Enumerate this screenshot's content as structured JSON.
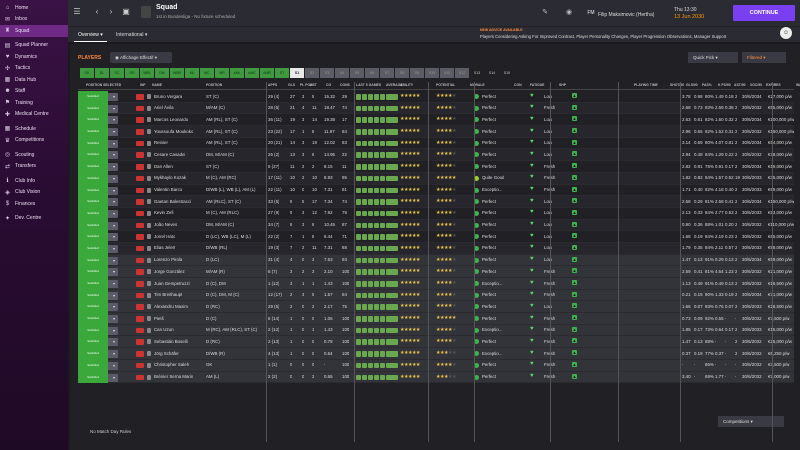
{
  "sidebar": {
    "items": [
      {
        "label": "Home",
        "icon": "home-icon"
      },
      {
        "label": "Inbox",
        "icon": "inbox-icon"
      },
      {
        "label": "Squad",
        "icon": "shirt-icon",
        "active": true
      },
      {
        "label": "Squad Planner",
        "icon": "planner-icon"
      },
      {
        "label": "Dynamics",
        "icon": "dynamics-icon"
      },
      {
        "label": "Tactics",
        "icon": "tactics-icon"
      },
      {
        "label": "Data Hub",
        "icon": "data-icon"
      },
      {
        "label": "Staff",
        "icon": "staff-icon"
      },
      {
        "label": "Training",
        "icon": "training-icon"
      },
      {
        "label": "Medical Centre",
        "icon": "medical-icon"
      },
      {
        "label": "Schedule",
        "icon": "calendar-icon"
      },
      {
        "label": "Competitions",
        "icon": "trophy-icon"
      },
      {
        "label": "Scouting",
        "icon": "scouting-icon"
      },
      {
        "label": "Transfers",
        "icon": "transfer-icon"
      },
      {
        "label": "Club Info",
        "icon": "info-icon"
      },
      {
        "label": "Club Vision",
        "icon": "vision-icon"
      },
      {
        "label": "Finances",
        "icon": "finance-icon"
      },
      {
        "label": "Dev. Centre",
        "icon": "dev-icon"
      }
    ]
  },
  "header": {
    "title": "Squad",
    "subtitle": "1st in Bundesliga - No fixture scheduled",
    "team": "Filip Maksimovic (Hertha)",
    "time": "Thu 13:30",
    "date": "13 Jun 2030",
    "continue_label": "CONTINUE"
  },
  "tabs": [
    {
      "label": "Overview"
    },
    {
      "label": "International"
    }
  ],
  "advice": {
    "title": "NEW ADVICE AVAILABLE",
    "text": "Players Considering Asking For Improved Contract, Player Personality Changes, Player Progression Observations, Manager Support"
  },
  "toolbar": {
    "players_label": "PLAYERS",
    "filter_label": "Affichage Effectif",
    "quickpick_label": "Quick Pick",
    "filtered_label": "Filtered"
  },
  "pos_buttons": [
    {
      "label": "GK",
      "style": "on"
    },
    {
      "label": "DL",
      "style": "on"
    },
    {
      "label": "DC",
      "style": "on"
    },
    {
      "label": "DR",
      "style": "on"
    },
    {
      "label": "WBL",
      "style": "on"
    },
    {
      "label": "DM",
      "style": "on"
    },
    {
      "label": "WBR",
      "style": "on"
    },
    {
      "label": "ML",
      "style": "on"
    },
    {
      "label": "MC",
      "style": "on"
    },
    {
      "label": "MR",
      "style": "on"
    },
    {
      "label": "AML",
      "style": "on"
    },
    {
      "label": "AMC",
      "style": "on"
    },
    {
      "label": "AMR",
      "style": "on"
    },
    {
      "label": "ST",
      "style": "on"
    },
    {
      "label": "S1",
      "style": "sel"
    },
    {
      "label": "S2",
      "style": "dim"
    },
    {
      "label": "S3",
      "style": "dim"
    },
    {
      "label": "S4",
      "style": "dim"
    },
    {
      "label": "S5",
      "style": "dim"
    },
    {
      "label": "S6",
      "style": "dim"
    },
    {
      "label": "S7",
      "style": "dim"
    },
    {
      "label": "S8",
      "style": "dim"
    },
    {
      "label": "S9",
      "style": "dim"
    },
    {
      "label": "S10",
      "style": "dim"
    },
    {
      "label": "S11",
      "style": "dim"
    },
    {
      "label": "S12",
      "style": "dim"
    },
    {
      "label": "S13",
      "style": "plain"
    },
    {
      "label": "S14",
      "style": "plain"
    },
    {
      "label": "S15",
      "style": "plain"
    }
  ],
  "columns": [
    "POSITION SELECTED",
    "INF",
    "NAME",
    "POSITION",
    "APPS",
    "GLS",
    "PL PON",
    "AST",
    "CG",
    "CONS",
    "LAST 5 GAMES",
    "AVERAGE",
    "ABILITY",
    "POTENTIAL",
    "MORALE",
    "CON",
    "FATIGUE",
    "SHP",
    "PLAYING TIME",
    "SHOT/90",
    "GLS/90",
    "PAS%",
    "K PS/90",
    "AST/90",
    "XGC/90",
    "EXPIRES",
    "WAGE",
    "TR"
  ],
  "players": [
    {
      "pos_sel": "",
      "name": "Bruno Vergara",
      "position": "ST (C)",
      "apps": "29 (4)",
      "gls": "27",
      "pon": "3",
      "ast": "5",
      "cg": "15.32",
      "cons": "29",
      "pot_stars": 4,
      "pot_half": false,
      "morale": "Perfect",
      "fatigue": "Low",
      "shot": "3.78",
      "gls90": "0.98",
      "pas": "80%",
      "kps": "1.49",
      "ast90": "0.18",
      "xg": "2",
      "expires": "30/6/2034",
      "wage": "€27,000 p/w"
    },
    {
      "pos_sel": "",
      "name": "Ariel Ávila",
      "position": "M/AM (C)",
      "apps": "28 (5)",
      "gls": "21",
      "pon": "4",
      "ast": "11",
      "cg": "18.47",
      "cons": "74",
      "pot_stars": 4,
      "pot_half": false,
      "morale": "Perfect",
      "fatigue": "Fresh",
      "shot": "2.68",
      "gls90": "0.73",
      "pas": "83%",
      "kps": "2.59",
      "ast90": "0.38",
      "xg": "2",
      "expires": "30/6/2032",
      "wage": "€55,000 p/w"
    },
    {
      "pos_sel": "AML",
      "name": "Marcos Leonardo",
      "position": "AM (RL), ST (C)",
      "apps": "36 (11)",
      "gls": "19",
      "pon": "3",
      "ast": "14",
      "cg": "19.38",
      "cons": "17",
      "pot_stars": 4,
      "pot_half": false,
      "morale": "Perfect",
      "fatigue": "Low",
      "shot": "2.63",
      "gls90": "0.61",
      "pas": "82%",
      "kps": "1.60",
      "ast90": "0.32",
      "xg": "2",
      "expires": "30/6/2034",
      "wage": "€100,000 p/w"
    },
    {
      "pos_sel": "AMR",
      "name": "Youssoufa Moukoko",
      "position": "AM (RL), ST (C)",
      "apps": "23 (22)",
      "gls": "17",
      "pon": "1",
      "ast": "8",
      "cg": "11.97",
      "cons": "84",
      "pot_stars": 4,
      "pot_half": false,
      "morale": "Perfect",
      "fatigue": "Low",
      "shot": "2.96",
      "gls90": "0.65",
      "pas": "82%",
      "kps": "1.52",
      "ast90": "0.31",
      "xg": "2",
      "expires": "30/6/2032",
      "wage": "€150,000 p/w"
    },
    {
      "pos_sel": "AMR",
      "name": "Reinier",
      "position": "AM (RL), ST (C)",
      "apps": "20 (21)",
      "gls": "14",
      "pon": "3",
      "ast": "19",
      "cg": "12.02",
      "cons": "83",
      "pot_stars": 4,
      "pot_half": false,
      "morale": "Perfect",
      "fatigue": "Low",
      "shot": "3.14",
      "gls90": "0.59",
      "pas": "80%",
      "kps": "4.07",
      "ast90": "0.81",
      "xg": "2",
      "expires": "30/6/2034",
      "wage": "€54,000 p/w"
    },
    {
      "pos_sel": "DMCR",
      "name": "Cesare Casadei",
      "position": "DM, M/AM (C)",
      "apps": "26 (2)",
      "gls": "13",
      "pon": "3",
      "ast": "6",
      "cg": "14.95",
      "cons": "22",
      "pot_stars": 4,
      "pot_half": false,
      "morale": "Perfect",
      "fatigue": "Low",
      "shot": "2.94",
      "gls90": "0.48",
      "pas": "84%",
      "kps": "1.29",
      "ast90": "0.22",
      "xg": "2",
      "expires": "30/6/2032",
      "wage": "€78,000 p/w"
    },
    {
      "pos_sel": "SUB",
      "name": "Dan Allen",
      "position": "ST (C)",
      "apps": "5 (27)",
      "gls": "11",
      "pon": "2",
      "ast": "2",
      "cg": "8.15",
      "cons": "11",
      "pot_stars": 4,
      "pot_half": false,
      "morale": "Perfect",
      "fatigue": "Fresh",
      "shot": "2.82",
      "gls90": "0.91",
      "pas": "75%",
      "kps": "0.91",
      "ast90": "0.17",
      "xg": "2",
      "expires": "30/6/2034",
      "wage": "€19,000 p/w"
    },
    {
      "pos_sel": "",
      "name": "Mykhaylo Kozak",
      "position": "M (C), AM (RC)",
      "apps": "17 (11)",
      "gls": "10",
      "pon": "2",
      "ast": "10",
      "cg": "8.93",
      "cons": "95",
      "pot_stars": 5,
      "pot_half": false,
      "morale": "Quite Good",
      "fatigue": "Fresh",
      "shot": "1.82",
      "gls90": "0.82",
      "pas": "84%",
      "kps": "1.57",
      "ast90": "0.52",
      "xg": "19",
      "expires": "30/6/2033",
      "wage": "€35,000 p/w"
    },
    {
      "pos_sel": "DRC",
      "name": "Valentin Barco",
      "position": "D/WB (L), WB (L), AM (L)",
      "apps": "22 (11)",
      "gls": "10",
      "pon": "0",
      "ast": "10",
      "cg": "7.31",
      "cons": "81",
      "pot_stars": 4,
      "pot_half": false,
      "morale": "Exceptio...",
      "fatigue": "Fresh",
      "shot": "1.71",
      "gls90": "0.40",
      "pas": "82%",
      "kps": "4.18",
      "ast90": "0.40",
      "xg": "2",
      "expires": "30/6/2033",
      "wage": "€69,000 p/w"
    },
    {
      "pos_sel": "AMR",
      "name": "Gaetan Balestracci",
      "position": "AM (RLC), ST (C)",
      "apps": "33 (5)",
      "gls": "9",
      "pon": "5",
      "ast": "17",
      "cg": "7.34",
      "cons": "74",
      "pot_stars": 4,
      "pot_half": false,
      "morale": "Perfect",
      "fatigue": "Low",
      "shot": "2.58",
      "gls90": "0.29",
      "pas": "81%",
      "kps": "2.58",
      "ast90": "0.41",
      "xg": "2",
      "expires": "30/6/2034",
      "wage": "€150,000 p/w"
    },
    {
      "pos_sel": "DMCL",
      "name": "Kevin Zefi",
      "position": "M (C), AM (RLC)",
      "apps": "27 (9)",
      "gls": "9",
      "pon": "3",
      "ast": "12",
      "cg": "7.92",
      "cons": "79",
      "pot_stars": 4,
      "pot_half": false,
      "morale": "Perfect",
      "fatigue": "Low",
      "shot": "2.13",
      "gls90": "0.33",
      "pas": "84%",
      "kps": "2.77",
      "ast90": "0.53",
      "xg": "2",
      "expires": "30/6/2033",
      "wage": "€53,000 p/w"
    },
    {
      "pos_sel": "DL",
      "name": "João Neves",
      "position": "DM, M/AM (C)",
      "apps": "34 (7)",
      "gls": "8",
      "pon": "3",
      "ast": "8",
      "cg": "10.45",
      "cons": "87",
      "pot_stars": 4,
      "pot_half": false,
      "morale": "Perfect",
      "fatigue": "Low",
      "shot": "0.90",
      "gls90": "0.36",
      "pas": "88%",
      "kps": "1.01",
      "ast90": "0.20",
      "xg": "2",
      "expires": "30/6/2032",
      "wage": "€110,000 p/w"
    },
    {
      "pos_sel": "DR",
      "name": "Jorrel Hato",
      "position": "D (LC), WB (LC), M (L)",
      "apps": "22 (2)",
      "gls": "7",
      "pon": "1",
      "ast": "8",
      "cg": "6.44",
      "cons": "71",
      "pot_stars": 4,
      "pot_half": false,
      "morale": "Perfect",
      "fatigue": "Low",
      "shot": "1.68",
      "gls90": "0.19",
      "pas": "84%",
      "kps": "2.19",
      "ast90": "0.23",
      "xg": "2",
      "expires": "30/6/2032",
      "wage": "€65,000 p/w"
    },
    {
      "pos_sel": "DCL",
      "name": "Elias Jelert",
      "position": "D/WB (RL)",
      "apps": "19 (3)",
      "gls": "7",
      "pon": "2",
      "ast": "11",
      "cg": "7.31",
      "cons": "88",
      "pot_stars": 4,
      "pot_half": false,
      "morale": "Perfect",
      "fatigue": "Low",
      "shot": "1.79",
      "gls90": "0.35",
      "pas": "84%",
      "kps": "2.11",
      "ast90": "0.57",
      "xg": "2",
      "expires": "30/6/2033",
      "wage": "€98,000 p/w"
    },
    {
      "pos_sel": "",
      "name": "Lorenzo Pirola",
      "position": "D (LC)",
      "apps": "31 (4)",
      "gls": "4",
      "pon": "0",
      "ast": "3",
      "cg": "7.53",
      "cons": "93",
      "pot_stars": 4,
      "pot_half": false,
      "morale": "Perfect",
      "fatigue": "Low",
      "shot": "1.47",
      "gls90": "0.13",
      "pas": "91%",
      "kps": "0.29",
      "ast90": "0.13",
      "xg": "2",
      "expires": "30/6/2034",
      "wage": "€59,000 p/w"
    },
    {
      "pos_sel": "",
      "name": "Jorge González",
      "position": "M/AM (R)",
      "apps": "6 (7)",
      "gls": "3",
      "pon": "2",
      "ast": "3",
      "cg": "2.10",
      "cons": "100",
      "pot_stars": 4,
      "pot_half": false,
      "morale": "Perfect",
      "fatigue": "Fresh",
      "shot": "2.59",
      "gls90": "0.41",
      "pas": "81%",
      "kps": "4.64",
      "ast90": "1.23",
      "xg": "2",
      "expires": "30/6/2032",
      "wage": "€21,000 p/w"
    },
    {
      "pos_sel": "",
      "name": "Juan Gempetruzzi",
      "position": "D (C), DM",
      "apps": "1 (12)",
      "gls": "3",
      "pon": "1",
      "ast": "1",
      "cg": "1.43",
      "cons": "100",
      "pot_stars": 4,
      "pot_half": false,
      "morale": "Exceptio...",
      "fatigue": "Fresh",
      "shot": "1.13",
      "gls90": "0.49",
      "pas": "91%",
      "kps": "0.49",
      "ast90": "0.13",
      "xg": "2",
      "expires": "30/6/2032",
      "wage": "€16,500 p/w"
    },
    {
      "pos_sel": "",
      "name": "Tim Breithaupt",
      "position": "D (C), DM, M (C)",
      "apps": "12 (17)",
      "gls": "2",
      "pon": "3",
      "ast": "5",
      "cg": "1.57",
      "cons": "84",
      "pot_stars": 4,
      "pot_half": false,
      "morale": "Perfect",
      "fatigue": "Fresh",
      "shot": "0.21",
      "gls90": "0.15",
      "pas": "90%",
      "kps": "1.33",
      "ast90": "0.19",
      "xg": "2",
      "expires": "30/6/2034",
      "wage": "€71,000 p/w"
    },
    {
      "pos_sel": "",
      "name": "Alexandru Maxim",
      "position": "D (RC)",
      "apps": "29 (5)",
      "gls": "2",
      "pon": "0",
      "ast": "2",
      "cg": "2.17",
      "cons": "75",
      "pot_stars": 4,
      "pot_half": false,
      "morale": "Perfect",
      "fatigue": "Low",
      "shot": "1.66",
      "gls90": "0.07",
      "pas": "93%",
      "kps": "0.76",
      "ast90": "0.07",
      "xg": "2",
      "expires": "30/6/2033",
      "wage": "€28,500 p/w"
    },
    {
      "pos_sel": "",
      "name": "Pietš",
      "position": "D (C)",
      "apps": "6 (14)",
      "gls": "1",
      "pon": "0",
      "ast": "0",
      "cg": "1.06",
      "cons": "100",
      "pot_stars": 5,
      "pot_half": false,
      "morale": "Perfect",
      "fatigue": "Fresh",
      "shot": "0.73",
      "gls90": "0.09",
      "pas": "92%",
      "kps": "0.55",
      "ast90": "-",
      "xg": "-",
      "expires": "30/6/2032",
      "wage": "€7,500 p/w"
    },
    {
      "pos_sel": "",
      "name": "Can Uzun",
      "position": "M (RC), AM (RLC), ST (C)",
      "apps": "2 (12)",
      "gls": "1",
      "pon": "0",
      "ast": "1",
      "cg": "1.43",
      "cons": "100",
      "pot_stars": 4,
      "pot_half": true,
      "morale": "Exceptio...",
      "fatigue": "Fresh",
      "shot": "1.85",
      "gls90": "0.17",
      "pas": "73%",
      "kps": "0.64",
      "ast90": "0.17",
      "xg": "2",
      "expires": "30/6/2033",
      "wage": "€15,000 p/w"
    },
    {
      "pos_sel": "",
      "name": "Sebastián Boselli",
      "position": "D (RC)",
      "apps": "2 (13)",
      "gls": "1",
      "pon": "0",
      "ast": "0",
      "cg": "0.78",
      "cons": "100",
      "pot_stars": 4,
      "pot_half": false,
      "morale": "Perfect",
      "fatigue": "Fresh",
      "shot": "1.47",
      "gls90": "0.13",
      "pas": "88%",
      "kps": "-",
      "ast90": "-",
      "xg": "2",
      "expires": "30/6/2032",
      "wage": "€25,000 p/w"
    },
    {
      "pos_sel": "",
      "name": "Jörg Schäfer",
      "position": "D/WB (R)",
      "apps": "4 (13)",
      "gls": "1",
      "pon": "0",
      "ast": "0",
      "cg": "0.64",
      "cons": "100",
      "pot_stars": 3,
      "pot_half": true,
      "morale": "Exceptio...",
      "fatigue": "Fresh",
      "shot": "0.37",
      "gls90": "0.19",
      "pas": "77%",
      "kps": "0.37",
      "ast90": "-",
      "xg": "2",
      "expires": "30/6/2032",
      "wage": "€6,250 p/w"
    },
    {
      "pos_sel": "",
      "name": "Christopher Saleh",
      "position": "GK",
      "apps": "1 (1)",
      "gls": "0",
      "pon": "0",
      "ast": "0",
      "cg": "-",
      "cons": "100",
      "pot_stars": 4,
      "pot_half": false,
      "morale": "Perfect",
      "fatigue": "Fresh",
      "shot": "-",
      "gls90": "-",
      "pas": "86%",
      "kps": "-",
      "ast90": "-",
      "xg": "-",
      "expires": "30/6/2032",
      "wage": "€3,500 p/w"
    },
    {
      "pos_sel": "",
      "name": "Brénier Serna Marin",
      "position": "AM (L)",
      "apps": "2 (2)",
      "gls": "0",
      "pon": "0",
      "ast": "3",
      "cg": "0.65",
      "cons": "100",
      "pot_stars": 3,
      "pot_half": true,
      "morale": "Perfect",
      "fatigue": "Fresh",
      "shot": "3.40",
      "gls90": "-",
      "pas": "69%",
      "kps": "1.77",
      "ast90": "-",
      "xg": "-",
      "expires": "30/6/2032",
      "wage": "€7,000 p/w"
    }
  ],
  "playing_time_label": "Satisfied",
  "footer": {
    "no_match": "No Match Day Rules",
    "competitions_label": "Competitions"
  },
  "colors": {
    "accent": "#7b3ff2",
    "sidebar": "#2a0c33",
    "green": "#3aa83a",
    "orange": "#ff8a3d"
  }
}
